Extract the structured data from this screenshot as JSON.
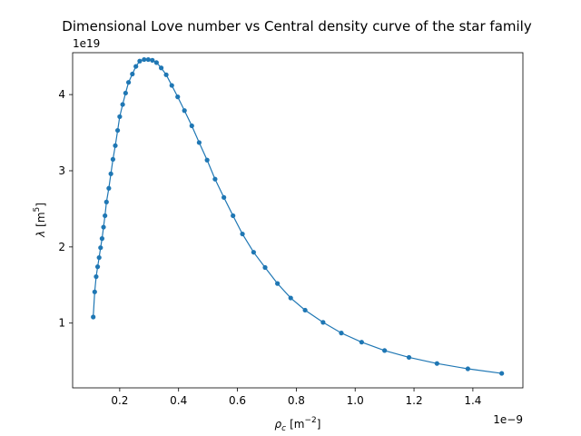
{
  "chart_data": {
    "type": "line",
    "title": "Dimensional Love number vs Central density curve of the star family",
    "xlabel": {
      "main": "ρ",
      "sub": "c",
      "unit": "[m",
      "unit_sup": "−2",
      "unit_close": "]"
    },
    "ylabel": {
      "main": "λ",
      "unit": "[m",
      "unit_sup": "5",
      "unit_close": "]"
    },
    "x_offset_label": "1e−9",
    "y_offset_label": "1e19",
    "x_scale": 1e-09,
    "y_scale": 1e+19,
    "xlim": [
      0.04,
      1.57
    ],
    "ylim": [
      0.15,
      4.55
    ],
    "xticks": [
      0.2,
      0.4,
      0.6,
      0.8,
      1.0,
      1.2,
      1.4
    ],
    "xtick_labels": [
      "0.2",
      "0.4",
      "0.6",
      "0.8",
      "1.0",
      "1.2",
      "1.4"
    ],
    "yticks": [
      1,
      2,
      3,
      4
    ],
    "ytick_labels": [
      "1",
      "2",
      "3",
      "4"
    ],
    "grid": false,
    "color": "#1f77b4",
    "series": [
      {
        "marker": "circle",
        "x": [
          0.11,
          0.115,
          0.12,
          0.125,
          0.13,
          0.135,
          0.14,
          0.145,
          0.15,
          0.155,
          0.163,
          0.17,
          0.177,
          0.185,
          0.193,
          0.2,
          0.21,
          0.22,
          0.23,
          0.243,
          0.255,
          0.268,
          0.283,
          0.297,
          0.311,
          0.325,
          0.341,
          0.358,
          0.377,
          0.397,
          0.42,
          0.445,
          0.47,
          0.497,
          0.524,
          0.554,
          0.585,
          0.617,
          0.655,
          0.694,
          0.736,
          0.781,
          0.83,
          0.891,
          0.953,
          1.022,
          1.1,
          1.183,
          1.278,
          1.383,
          1.498
        ],
        "y": [
          1.08,
          1.41,
          1.61,
          1.74,
          1.86,
          1.99,
          2.11,
          2.26,
          2.41,
          2.59,
          2.77,
          2.96,
          3.15,
          3.33,
          3.53,
          3.71,
          3.87,
          4.02,
          4.16,
          4.27,
          4.37,
          4.44,
          4.46,
          4.46,
          4.45,
          4.42,
          4.35,
          4.26,
          4.12,
          3.97,
          3.79,
          3.59,
          3.37,
          3.14,
          2.89,
          2.65,
          2.41,
          2.17,
          1.93,
          1.73,
          1.52,
          1.33,
          1.17,
          1.01,
          0.87,
          0.75,
          0.64,
          0.55,
          0.47,
          0.4,
          0.34
        ]
      }
    ]
  }
}
